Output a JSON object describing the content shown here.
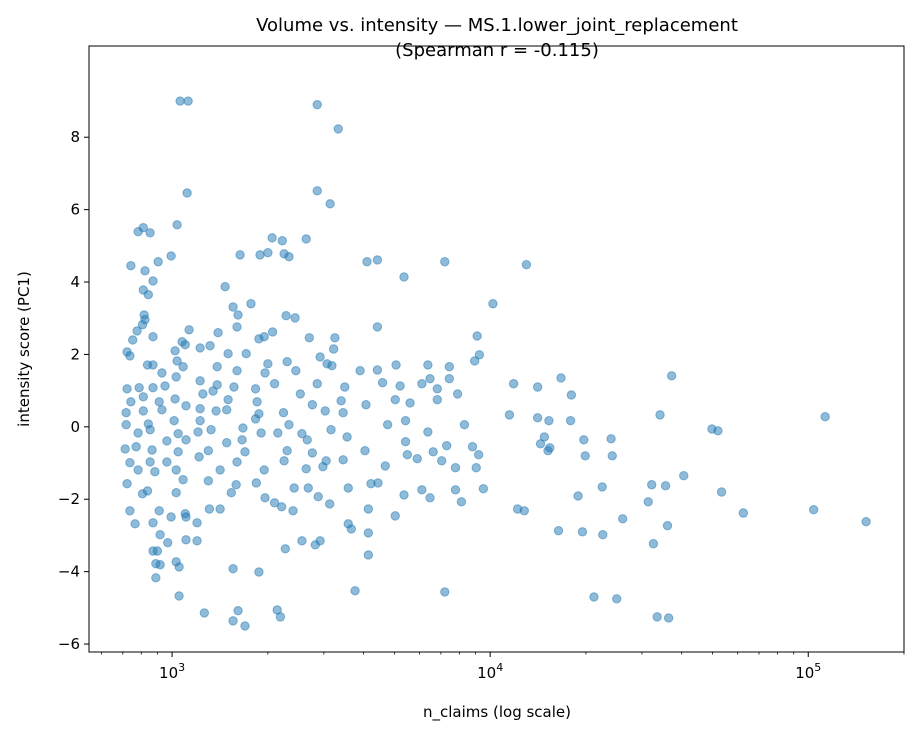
{
  "chart_data": {
    "type": "scatter",
    "title": "Volume vs. intensity — MS.1.lower_joint_replacement",
    "subtitle": "(Spearman r = -0.115)",
    "xlabel": "n_claims (log scale)",
    "ylabel": "intensity score (PC1)",
    "xscale": "log",
    "xlim": [
      548,
      200000
    ],
    "ylim": [
      -6.22,
      10.52
    ],
    "grid": false,
    "marker_color": "#1f77b4",
    "marker_alpha": 0.5,
    "xticks": [
      {
        "value": 1000,
        "base": "10",
        "exp": "3"
      },
      {
        "value": 10000,
        "base": "10",
        "exp": "4"
      },
      {
        "value": 100000,
        "base": "10",
        "exp": "5"
      }
    ],
    "yticks": [
      {
        "value": -6,
        "label": "−6"
      },
      {
        "value": -4,
        "label": "−4"
      },
      {
        "value": -2,
        "label": "−2"
      },
      {
        "value": 0,
        "label": "0"
      },
      {
        "value": 2,
        "label": "2"
      },
      {
        "value": 4,
        "label": "4"
      },
      {
        "value": 6,
        "label": "6"
      },
      {
        "value": 8,
        "label": "8"
      }
    ],
    "points": [
      [
        1060,
        9.0
      ],
      [
        1123,
        9.0
      ],
      [
        2860,
        8.9
      ],
      [
        3330,
        8.23
      ],
      [
        1115,
        6.46
      ],
      [
        2860,
        6.52
      ],
      [
        3140,
        6.16
      ],
      [
        1037,
        5.58
      ],
      [
        782,
        5.39
      ],
      [
        812,
        5.5
      ],
      [
        853,
        5.36
      ],
      [
        2063,
        5.22
      ],
      [
        2220,
        5.14
      ],
      [
        2640,
        5.19
      ],
      [
        1636,
        4.75
      ],
      [
        1890,
        4.75
      ],
      [
        2000,
        4.81
      ],
      [
        2250,
        4.78
      ],
      [
        2330,
        4.7
      ],
      [
        742,
        4.45
      ],
      [
        904,
        4.56
      ],
      [
        993,
        4.72
      ],
      [
        822,
        4.31
      ],
      [
        4100,
        4.56
      ],
      [
        4420,
        4.61
      ],
      [
        7200,
        4.56
      ],
      [
        13000,
        4.48
      ],
      [
        5360,
        4.14
      ],
      [
        871,
        4.03
      ],
      [
        812,
        3.78
      ],
      [
        842,
        3.65
      ],
      [
        1468,
        3.87
      ],
      [
        1555,
        3.31
      ],
      [
        1612,
        3.09
      ],
      [
        1770,
        3.4
      ],
      [
        2283,
        3.07
      ],
      [
        2436,
        3.01
      ],
      [
        10200,
        3.4
      ],
      [
        817,
        3.09
      ],
      [
        822,
        2.96
      ],
      [
        807,
        2.82
      ],
      [
        776,
        2.65
      ],
      [
        1131,
        2.68
      ],
      [
        1395,
        2.6
      ],
      [
        1600,
        2.76
      ],
      [
        2070,
        2.62
      ],
      [
        4420,
        2.76
      ],
      [
        752,
        2.4
      ],
      [
        871,
        2.49
      ],
      [
        1100,
        2.27
      ],
      [
        1316,
        2.24
      ],
      [
        1875,
        2.43
      ],
      [
        1948,
        2.49
      ],
      [
        2700,
        2.46
      ],
      [
        3250,
        2.46
      ],
      [
        9100,
        2.51
      ],
      [
        722,
        2.07
      ],
      [
        737,
        1.96
      ],
      [
        1022,
        2.1
      ],
      [
        1075,
        2.35
      ],
      [
        1225,
        2.18
      ],
      [
        1500,
        2.02
      ],
      [
        1710,
        2.02
      ],
      [
        3220,
        2.15
      ],
      [
        2920,
        1.93
      ],
      [
        9250,
        1.99
      ],
      [
        837,
        1.71
      ],
      [
        871,
        1.71
      ],
      [
        1037,
        1.82
      ],
      [
        1083,
        1.66
      ],
      [
        1386,
        1.66
      ],
      [
        2000,
        1.74
      ],
      [
        2300,
        1.8
      ],
      [
        3070,
        1.74
      ],
      [
        3180,
        1.69
      ],
      [
        4420,
        1.57
      ],
      [
        5060,
        1.71
      ],
      [
        6370,
        1.71
      ],
      [
        7440,
        1.66
      ],
      [
        8940,
        1.82
      ],
      [
        929,
        1.49
      ],
      [
        1030,
        1.38
      ],
      [
        1600,
        1.55
      ],
      [
        1960,
        1.49
      ],
      [
        2450,
        1.55
      ],
      [
        3900,
        1.55
      ],
      [
        6470,
        1.33
      ],
      [
        7440,
        1.33
      ],
      [
        11850,
        1.19
      ],
      [
        16700,
        1.35
      ],
      [
        37200,
        1.41
      ],
      [
        722,
        1.05
      ],
      [
        788,
        1.08
      ],
      [
        871,
        1.08
      ],
      [
        950,
        1.13
      ],
      [
        1225,
        1.27
      ],
      [
        1386,
        1.16
      ],
      [
        1565,
        1.1
      ],
      [
        1830,
        1.05
      ],
      [
        2100,
        1.19
      ],
      [
        2860,
        1.19
      ],
      [
        3490,
        1.1
      ],
      [
        4590,
        1.22
      ],
      [
        5210,
        1.13
      ],
      [
        6100,
        1.19
      ],
      [
        6820,
        1.05
      ],
      [
        7900,
        0.91
      ],
      [
        14100,
        1.1
      ],
      [
        18000,
        0.88
      ],
      [
        742,
        0.69
      ],
      [
        812,
        0.83
      ],
      [
        911,
        0.69
      ],
      [
        1022,
        0.77
      ],
      [
        1250,
        0.91
      ],
      [
        1345,
        0.99
      ],
      [
        1500,
        0.75
      ],
      [
        1850,
        0.69
      ],
      [
        2530,
        0.91
      ],
      [
        2760,
        0.61
      ],
      [
        3400,
        0.72
      ],
      [
        4070,
        0.61
      ],
      [
        5030,
        0.75
      ],
      [
        5600,
        0.66
      ],
      [
        6820,
        0.75
      ],
      [
        717,
        0.39
      ],
      [
        812,
        0.44
      ],
      [
        929,
        0.47
      ],
      [
        1106,
        0.58
      ],
      [
        1225,
        0.5
      ],
      [
        1375,
        0.44
      ],
      [
        1485,
        0.47
      ],
      [
        1875,
        0.36
      ],
      [
        2240,
        0.39
      ],
      [
        3030,
        0.44
      ],
      [
        3450,
        0.39
      ],
      [
        11500,
        0.33
      ],
      [
        34200,
        0.33
      ],
      [
        113000,
        0.28
      ],
      [
        717,
        0.06
      ],
      [
        842,
        0.08
      ],
      [
        1015,
        0.17
      ],
      [
        1225,
        0.17
      ],
      [
        1830,
        0.22
      ],
      [
        2330,
        0.06
      ],
      [
        4760,
        0.06
      ],
      [
        5420,
        0.17
      ],
      [
        8300,
        0.06
      ],
      [
        14100,
        0.25
      ],
      [
        15300,
        0.17
      ],
      [
        17900,
        0.17
      ],
      [
        49800,
        -0.06
      ],
      [
        52000,
        -0.11
      ],
      [
        782,
        -0.17
      ],
      [
        853,
        -0.08
      ],
      [
        1045,
        -0.19
      ],
      [
        1207,
        -0.14
      ],
      [
        1326,
        -0.08
      ],
      [
        1670,
        -0.03
      ],
      [
        1905,
        -0.17
      ],
      [
        2150,
        -0.17
      ],
      [
        2560,
        -0.19
      ],
      [
        3160,
        -0.08
      ],
      [
        3550,
        -0.28
      ],
      [
        6370,
        -0.14
      ],
      [
        771,
        -0.55
      ],
      [
        963,
        -0.39
      ],
      [
        1106,
        -0.36
      ],
      [
        1485,
        -0.44
      ],
      [
        1660,
        -0.36
      ],
      [
        2660,
        -0.36
      ],
      [
        5420,
        -0.41
      ],
      [
        14400,
        -0.47
      ],
      [
        14800,
        -0.28
      ],
      [
        19700,
        -0.36
      ],
      [
        24000,
        -0.33
      ],
      [
        712,
        -0.61
      ],
      [
        865,
        -0.64
      ],
      [
        1045,
        -0.69
      ],
      [
        1300,
        -0.66
      ],
      [
        1695,
        -0.69
      ],
      [
        2300,
        -0.66
      ],
      [
        2760,
        -0.72
      ],
      [
        4040,
        -0.66
      ],
      [
        5490,
        -0.77
      ],
      [
        6620,
        -0.69
      ],
      [
        7300,
        -0.52
      ],
      [
        8800,
        -0.55
      ],
      [
        15200,
        -0.66
      ],
      [
        15400,
        -0.58
      ],
      [
        737,
        -0.99
      ],
      [
        853,
        -0.97
      ],
      [
        963,
        -0.97
      ],
      [
        1216,
        -0.83
      ],
      [
        1600,
        -0.97
      ],
      [
        2250,
        -0.94
      ],
      [
        3050,
        -0.94
      ],
      [
        3450,
        -0.91
      ],
      [
        5900,
        -0.88
      ],
      [
        7040,
        -0.94
      ],
      [
        9200,
        -0.77
      ],
      [
        19900,
        -0.8
      ],
      [
        24200,
        -0.8
      ],
      [
        782,
        -1.19
      ],
      [
        883,
        -1.24
      ],
      [
        1030,
        -1.19
      ],
      [
        1416,
        -1.19
      ],
      [
        1948,
        -1.19
      ],
      [
        2640,
        -1.16
      ],
      [
        2980,
        -1.1
      ],
      [
        4680,
        -1.08
      ],
      [
        7780,
        -1.13
      ],
      [
        9040,
        -1.13
      ],
      [
        722,
        -1.57
      ],
      [
        837,
        -1.77
      ],
      [
        1083,
        -1.46
      ],
      [
        1300,
        -1.49
      ],
      [
        1590,
        -1.6
      ],
      [
        1840,
        -1.55
      ],
      [
        2420,
        -1.69
      ],
      [
        2680,
        -1.69
      ],
      [
        3580,
        -1.69
      ],
      [
        4220,
        -1.57
      ],
      [
        4440,
        -1.55
      ],
      [
        6100,
        -1.74
      ],
      [
        7780,
        -1.74
      ],
      [
        9520,
        -1.71
      ],
      [
        22500,
        -1.66
      ],
      [
        32200,
        -1.6
      ],
      [
        35600,
        -1.63
      ],
      [
        40600,
        -1.35
      ],
      [
        53400,
        -1.8
      ],
      [
        1030,
        -1.82
      ],
      [
        1535,
        -1.82
      ],
      [
        1960,
        -1.96
      ],
      [
        2880,
        -1.93
      ],
      [
        5360,
        -1.88
      ],
      [
        6470,
        -1.96
      ],
      [
        18900,
        -1.91
      ],
      [
        807,
        -1.85
      ],
      [
        2100,
        -2.1
      ],
      [
        2210,
        -2.21
      ],
      [
        3130,
        -2.13
      ],
      [
        8120,
        -2.07
      ],
      [
        31400,
        -2.07
      ],
      [
        911,
        -2.32
      ],
      [
        1100,
        -2.4
      ],
      [
        1310,
        -2.27
      ],
      [
        1416,
        -2.27
      ],
      [
        2400,
        -2.32
      ],
      [
        4140,
        -2.27
      ],
      [
        12200,
        -2.27
      ],
      [
        12800,
        -2.32
      ],
      [
        737,
        -2.32
      ],
      [
        104000,
        -2.29
      ],
      [
        62500,
        -2.38
      ],
      [
        152000,
        -2.62
      ],
      [
        993,
        -2.49
      ],
      [
        1106,
        -2.49
      ],
      [
        1198,
        -2.65
      ],
      [
        5030,
        -2.46
      ],
      [
        26100,
        -2.54
      ],
      [
        765,
        -2.68
      ],
      [
        871,
        -2.65
      ],
      [
        3580,
        -2.68
      ],
      [
        3660,
        -2.82
      ],
      [
        4140,
        -2.93
      ],
      [
        16400,
        -2.87
      ],
      [
        19500,
        -2.9
      ],
      [
        22600,
        -2.98
      ],
      [
        36100,
        -2.73
      ],
      [
        917,
        -2.98
      ],
      [
        969,
        -3.2
      ],
      [
        1106,
        -3.12
      ],
      [
        1198,
        -3.15
      ],
      [
        2920,
        -3.15
      ],
      [
        2560,
        -3.15
      ],
      [
        2820,
        -3.26
      ],
      [
        32600,
        -3.23
      ],
      [
        871,
        -3.43
      ],
      [
        899,
        -3.43
      ],
      [
        2270,
        -3.37
      ],
      [
        1030,
        -3.73
      ],
      [
        4140,
        -3.54
      ],
      [
        889,
        -3.78
      ],
      [
        917,
        -3.81
      ],
      [
        1052,
        -3.87
      ],
      [
        1555,
        -3.92
      ],
      [
        1875,
        -4.01
      ],
      [
        889,
        -4.17
      ],
      [
        3760,
        -4.53
      ],
      [
        7200,
        -4.56
      ],
      [
        1052,
        -4.67
      ],
      [
        21200,
        -4.7
      ],
      [
        25000,
        -4.75
      ],
      [
        1263,
        -5.14
      ],
      [
        2140,
        -5.06
      ],
      [
        1612,
        -5.08
      ],
      [
        2190,
        -5.25
      ],
      [
        1555,
        -5.36
      ],
      [
        1695,
        -5.5
      ],
      [
        33500,
        -5.25
      ],
      [
        36400,
        -5.28
      ]
    ]
  }
}
